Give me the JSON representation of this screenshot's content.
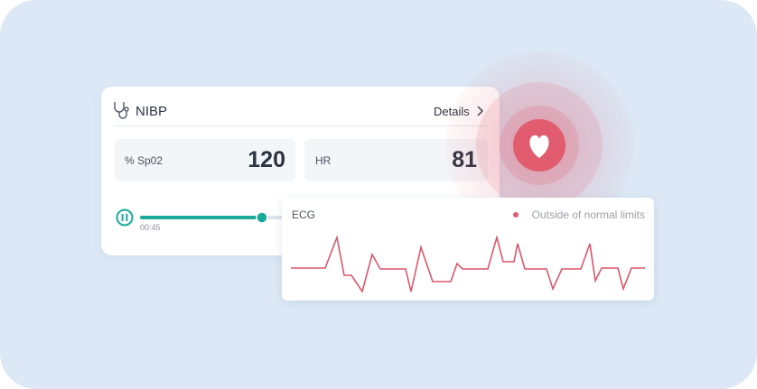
{
  "card": {
    "title": "NIBP",
    "link": "Details",
    "metrics": [
      {
        "label": "% Sp02",
        "value": "120"
      },
      {
        "label": "HR",
        "value": "81"
      }
    ],
    "time": "00:45"
  },
  "ecg": {
    "title": "ECG",
    "status": "Outside of normal limits"
  }
}
